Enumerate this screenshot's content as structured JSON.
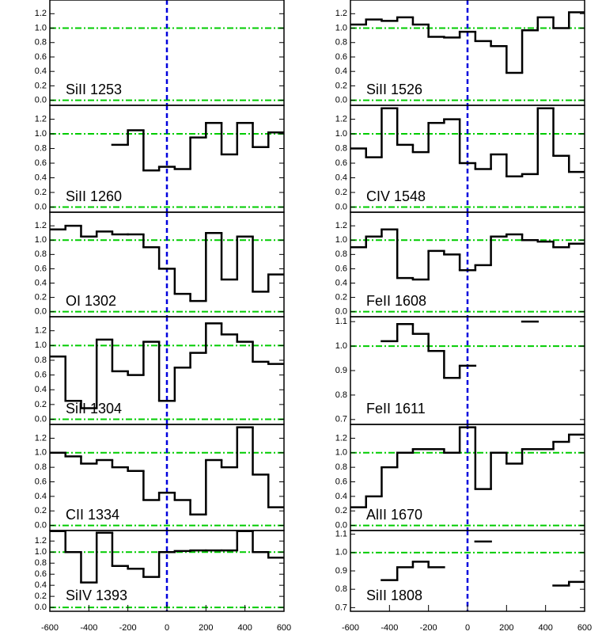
{
  "chart_data": [
    {
      "type": "line",
      "label": "SiII 1253",
      "x": [
        -560,
        -480,
        -400,
        -320,
        -240,
        -160,
        -80,
        0,
        80,
        160,
        240,
        320,
        400,
        480,
        560
      ],
      "values": [
        null,
        null,
        null,
        null,
        null,
        null,
        null,
        null,
        null,
        null,
        null,
        null,
        null,
        null,
        null
      ],
      "xlim": [
        -600,
        600
      ],
      "ylim": [
        -0.07,
        1.39
      ],
      "yticks": [
        {
          "value": 0,
          "label": "0.0"
        },
        0.2,
        0.4,
        0.6,
        0.8,
        {
          "value": 1,
          "label": "1.0"
        },
        1.2
      ],
      "hlines": [
        0,
        1
      ],
      "vline": 0,
      "color": "#000000"
    },
    {
      "type": "line",
      "label": "SiII 1260",
      "x": [
        -560,
        -480,
        -400,
        -320,
        -240,
        -160,
        -80,
        0,
        80,
        160,
        240,
        320,
        400,
        480,
        560
      ],
      "values": [
        null,
        null,
        null,
        null,
        0.85,
        1.05,
        0.5,
        0.55,
        0.52,
        0.95,
        1.15,
        0.72,
        1.15,
        0.82,
        1.02
      ],
      "xlim": [
        -600,
        600
      ],
      "ylim": [
        -0.07,
        1.39
      ],
      "yticks": [
        {
          "value": 0,
          "label": "0.0"
        },
        0.2,
        0.4,
        0.6,
        0.8,
        {
          "value": 1,
          "label": "1.0"
        },
        1.2
      ],
      "hlines": [
        0,
        1
      ],
      "vline": 0,
      "color": "#000000"
    },
    {
      "type": "line",
      "label": "OI 1302",
      "x": [
        -560,
        -480,
        -400,
        -320,
        -240,
        -160,
        -80,
        0,
        80,
        160,
        240,
        320,
        400,
        480,
        560
      ],
      "values": [
        1.15,
        1.2,
        1.05,
        1.12,
        1.08,
        1.08,
        0.9,
        0.6,
        0.25,
        0.15,
        1.1,
        0.45,
        1.05,
        0.28,
        0.52
      ],
      "xlim": [
        -600,
        600
      ],
      "ylim": [
        -0.07,
        1.39
      ],
      "yticks": [
        {
          "value": 0,
          "label": "0.0"
        },
        0.2,
        0.4,
        0.6,
        0.8,
        {
          "value": 1,
          "label": "1.0"
        },
        1.2
      ],
      "hlines": [
        0,
        1
      ],
      "vline": 0,
      "color": "#000000"
    },
    {
      "type": "line",
      "label": "SiII 1304",
      "x": [
        -560,
        -480,
        -400,
        -320,
        -240,
        -160,
        -80,
        0,
        80,
        160,
        240,
        320,
        400,
        480,
        560
      ],
      "values": [
        0.85,
        0.25,
        0.15,
        1.08,
        0.65,
        0.6,
        1.05,
        0.25,
        0.7,
        0.9,
        1.3,
        1.15,
        1.05,
        0.78,
        0.75
      ],
      "xlim": [
        -600,
        600
      ],
      "ylim": [
        -0.07,
        1.39
      ],
      "yticks": [
        {
          "value": 0,
          "label": "0.0"
        },
        0.2,
        0.4,
        0.6,
        0.8,
        {
          "value": 1,
          "label": "1.0"
        },
        1.2
      ],
      "hlines": [
        0,
        1
      ],
      "vline": 0,
      "color": "#000000"
    },
    {
      "type": "line",
      "label": "CII 1334",
      "x": [
        -560,
        -480,
        -400,
        -320,
        -240,
        -160,
        -80,
        0,
        80,
        160,
        240,
        320,
        400,
        480,
        560
      ],
      "values": [
        1.0,
        0.95,
        0.85,
        0.9,
        0.8,
        0.75,
        0.35,
        0.45,
        0.35,
        0.15,
        0.9,
        0.8,
        1.35,
        0.7,
        0.25
      ],
      "xlim": [
        -600,
        600
      ],
      "ylim": [
        -0.07,
        1.39
      ],
      "yticks": [
        {
          "value": 0,
          "label": "0.0"
        },
        0.2,
        0.4,
        0.6,
        0.8,
        {
          "value": 1,
          "label": "1.0"
        },
        1.2
      ],
      "hlines": [
        0,
        1
      ],
      "vline": 0,
      "color": "#000000"
    },
    {
      "type": "line",
      "label": "SiIV 1393",
      "x": [
        -560,
        -480,
        -400,
        -320,
        -240,
        -160,
        -80,
        0,
        80,
        160,
        240,
        320,
        400,
        480,
        560
      ],
      "values": [
        1.38,
        1.0,
        0.45,
        1.35,
        0.75,
        0.7,
        0.55,
        1.0,
        1.02,
        1.03,
        1.03,
        1.03,
        1.38,
        1.0,
        0.9
      ],
      "xlim": [
        -600,
        600
      ],
      "ylim": [
        -0.07,
        1.39
      ],
      "yticks": [
        {
          "value": 0,
          "label": "0.0"
        },
        0.2,
        0.4,
        0.6,
        0.8,
        {
          "value": 1,
          "label": "1.0"
        },
        1.2
      ],
      "hlines": [
        0,
        1
      ],
      "vline": 0,
      "color": "#000000",
      "xticks": [
        -600,
        -400,
        -200,
        0,
        200,
        400,
        600
      ]
    },
    {
      "type": "line",
      "label": "SiII 1526",
      "x": [
        -560,
        -480,
        -400,
        -320,
        -240,
        -160,
        -80,
        0,
        80,
        160,
        240,
        320,
        400,
        480,
        560
      ],
      "values": [
        1.05,
        1.12,
        1.1,
        1.15,
        1.05,
        0.88,
        0.87,
        0.95,
        0.82,
        0.75,
        0.38,
        0.97,
        1.15,
        1.0,
        1.22
      ],
      "xlim": [
        -600,
        600
      ],
      "ylim": [
        -0.07,
        1.39
      ],
      "yticks": [
        {
          "value": 0,
          "label": "0.0"
        },
        0.2,
        0.4,
        0.6,
        0.8,
        {
          "value": 1,
          "label": "1.0"
        },
        1.2
      ],
      "hlines": [
        0,
        1
      ],
      "vline": 0,
      "color": "#000000"
    },
    {
      "type": "line",
      "label": "CIV 1548",
      "x": [
        -560,
        -480,
        -400,
        -320,
        -240,
        -160,
        -80,
        0,
        80,
        160,
        240,
        320,
        400,
        480,
        560
      ],
      "values": [
        0.8,
        0.68,
        1.35,
        0.85,
        0.75,
        1.15,
        1.2,
        0.6,
        0.52,
        0.72,
        0.42,
        0.45,
        1.35,
        0.7,
        0.48
      ],
      "xlim": [
        -600,
        600
      ],
      "ylim": [
        -0.07,
        1.39
      ],
      "yticks": [
        {
          "value": 0,
          "label": "0.0"
        },
        0.2,
        0.4,
        0.6,
        0.8,
        {
          "value": 1,
          "label": "1.0"
        },
        1.2
      ],
      "hlines": [
        0,
        1
      ],
      "vline": 0,
      "color": "#000000"
    },
    {
      "type": "line",
      "label": "FeII 1608",
      "x": [
        -560,
        -480,
        -400,
        -320,
        -240,
        -160,
        -80,
        0,
        80,
        160,
        240,
        320,
        400,
        480,
        560
      ],
      "values": [
        0.9,
        1.05,
        1.15,
        0.47,
        0.45,
        0.85,
        0.8,
        0.58,
        0.65,
        1.05,
        1.08,
        1.0,
        0.98,
        0.9,
        0.95
      ],
      "xlim": [
        -600,
        600
      ],
      "ylim": [
        -0.07,
        1.39
      ],
      "yticks": [
        {
          "value": 0,
          "label": "0.0"
        },
        0.2,
        0.4,
        0.6,
        0.8,
        {
          "value": 1,
          "label": "1.0"
        },
        1.2
      ],
      "hlines": [
        0,
        1
      ],
      "vline": 0,
      "color": "#000000"
    },
    {
      "type": "line",
      "label": "FeII 1611",
      "x": [
        -560,
        -480,
        -400,
        -320,
        -240,
        -160,
        -80,
        0,
        80,
        160,
        240,
        320,
        400,
        480,
        560
      ],
      "values": [
        null,
        null,
        1.02,
        1.09,
        1.05,
        0.98,
        0.87,
        0.92,
        null,
        null,
        null,
        1.1,
        null,
        null,
        null
      ],
      "xlim": [
        -600,
        600
      ],
      "ylim": [
        0.68,
        1.12
      ],
      "yticks": [
        0.7,
        0.8,
        0.9,
        {
          "value": 1,
          "label": "1.0"
        },
        1.1
      ],
      "hlines": [
        1
      ],
      "vline": 0,
      "color": "#000000"
    },
    {
      "type": "line",
      "label": "AlII 1670",
      "x": [
        -560,
        -480,
        -400,
        -320,
        -240,
        -160,
        -80,
        0,
        80,
        160,
        240,
        320,
        400,
        480,
        560
      ],
      "values": [
        0.25,
        0.4,
        0.8,
        1.0,
        1.05,
        1.05,
        1.0,
        1.35,
        0.5,
        1.0,
        0.85,
        1.05,
        1.05,
        1.15,
        1.25
      ],
      "xlim": [
        -600,
        600
      ],
      "ylim": [
        -0.07,
        1.39
      ],
      "yticks": [
        {
          "value": 0,
          "label": "0.0"
        },
        0.2,
        0.4,
        0.6,
        0.8,
        {
          "value": 1,
          "label": "1.0"
        },
        1.2
      ],
      "hlines": [
        0,
        1
      ],
      "vline": 0,
      "color": "#000000"
    },
    {
      "type": "line",
      "label": "SiII 1808",
      "x": [
        -560,
        -480,
        -400,
        -320,
        -240,
        -160,
        -80,
        0,
        80,
        160,
        240,
        320,
        400,
        480,
        560
      ],
      "values": [
        null,
        null,
        0.85,
        0.92,
        0.95,
        0.92,
        null,
        null,
        1.06,
        null,
        null,
        null,
        null,
        0.82,
        0.84
      ],
      "xlim": [
        -600,
        600
      ],
      "ylim": [
        0.68,
        1.12
      ],
      "yticks": [
        0.7,
        0.8,
        0.9,
        {
          "value": 1,
          "label": "1.0"
        },
        1.1
      ],
      "hlines": [
        1
      ],
      "vline": 0,
      "color": "#000000",
      "xticks": [
        -600,
        -400,
        -200,
        0,
        200,
        400,
        600
      ]
    }
  ]
}
